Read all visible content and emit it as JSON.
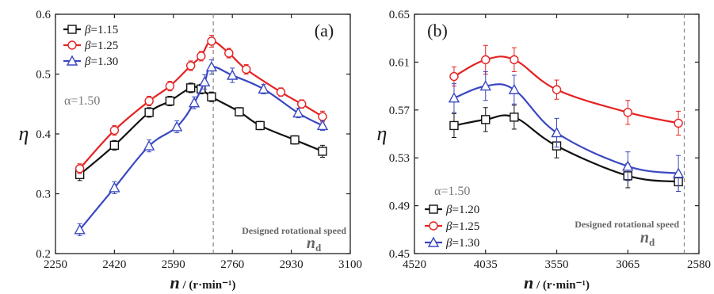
{
  "chart_data": [
    {
      "type": "line",
      "panel_label": "(a)",
      "xlabel_symbol": "n",
      "xlabel_unit": " / (r·min⁻¹)",
      "ylabel": "η",
      "xlim": [
        2250,
        3100
      ],
      "ylim": [
        0.2,
        0.6
      ],
      "x_reversed": false,
      "xticks": [
        2250,
        2420,
        2590,
        2760,
        2930,
        3100
      ],
      "yticks": [
        0.2,
        0.3,
        0.4,
        0.5,
        0.6
      ],
      "ytick_labels": [
        "0.2",
        "0.3",
        "0.4",
        "0.5",
        "0.6"
      ],
      "legend_position": "top-left",
      "alpha_label": "α=1.50",
      "designed_speed": 2705,
      "designed_label": "Designed rotational speed",
      "nd_symbol": "n",
      "nd_sub": "d",
      "series": [
        {
          "name": "β=1.15",
          "marker": "square",
          "color": "#111111",
          "x": [
            2320,
            2420,
            2520,
            2580,
            2640,
            2670,
            2700,
            2780,
            2840,
            2940,
            3020
          ],
          "y": [
            0.332,
            0.381,
            0.436,
            0.455,
            0.477,
            0.475,
            0.462,
            0.437,
            0.414,
            0.39,
            0.371
          ],
          "err": [
            0.01,
            0.008,
            0.008,
            0.008,
            0.008,
            0.008,
            0.008,
            0.007,
            0.007,
            0.007,
            0.01
          ]
        },
        {
          "name": "β=1.25",
          "marker": "circle",
          "color": "#e52222",
          "x": [
            2320,
            2420,
            2520,
            2580,
            2640,
            2670,
            2700,
            2750,
            2800,
            2900,
            2960,
            3020
          ],
          "y": [
            0.342,
            0.406,
            0.455,
            0.48,
            0.514,
            0.53,
            0.555,
            0.535,
            0.508,
            0.47,
            0.45,
            0.429
          ],
          "err": [
            0.008,
            0.008,
            0.008,
            0.008,
            0.008,
            0.008,
            0.01,
            0.008,
            0.008,
            0.007,
            0.007,
            0.009
          ]
        },
        {
          "name": "β=1.30",
          "marker": "triangle",
          "color": "#3a48c0",
          "x": [
            2320,
            2420,
            2520,
            2600,
            2650,
            2680,
            2700,
            2760,
            2850,
            2950,
            3020
          ],
          "y": [
            0.24,
            0.31,
            0.38,
            0.412,
            0.452,
            0.487,
            0.512,
            0.498,
            0.475,
            0.435,
            0.414
          ],
          "err": [
            0.01,
            0.01,
            0.01,
            0.01,
            0.01,
            0.012,
            0.012,
            0.012,
            0.008,
            0.008,
            0.008
          ]
        }
      ]
    },
    {
      "type": "line",
      "panel_label": "(b)",
      "xlabel_symbol": "n",
      "xlabel_unit": " / (r·min⁻¹)",
      "ylabel": "η",
      "xlim": [
        4520,
        2580
      ],
      "ylim": [
        0.45,
        0.65
      ],
      "x_reversed": true,
      "xticks": [
        4520,
        4035,
        3550,
        3065,
        2580
      ],
      "yticks": [
        0.45,
        0.49,
        0.53,
        0.57,
        0.61,
        0.65
      ],
      "ytick_labels": [
        "0.45",
        "0.49",
        "0.53",
        "0.57",
        "0.61",
        "0.65"
      ],
      "legend_position": "bottom-left",
      "alpha_label": "α=1.50",
      "designed_speed": 2680,
      "designed_label": "Designed rotational speed",
      "nd_symbol": "n",
      "nd_sub": "d",
      "series": [
        {
          "name": "β=1.20",
          "marker": "square",
          "color": "#111111",
          "x": [
            4250,
            4035,
            3840,
            3550,
            3065,
            2720
          ],
          "y": [
            0.557,
            0.562,
            0.564,
            0.54,
            0.515,
            0.51
          ],
          "err": [
            0.01,
            0.01,
            0.01,
            0.01,
            0.01,
            0.008
          ]
        },
        {
          "name": "β=1.25",
          "marker": "circle",
          "color": "#e52222",
          "x": [
            4250,
            4035,
            3840,
            3550,
            3065,
            2720
          ],
          "y": [
            0.598,
            0.612,
            0.612,
            0.587,
            0.568,
            0.559
          ],
          "err": [
            0.008,
            0.012,
            0.01,
            0.008,
            0.01,
            0.01
          ]
        },
        {
          "name": "β=1.30",
          "marker": "triangle",
          "color": "#3a48c0",
          "x": [
            4250,
            4035,
            3840,
            3550,
            3065,
            2720
          ],
          "y": [
            0.58,
            0.59,
            0.587,
            0.551,
            0.523,
            0.517
          ],
          "err": [
            0.012,
            0.012,
            0.012,
            0.012,
            0.012,
            0.015
          ]
        }
      ]
    }
  ]
}
